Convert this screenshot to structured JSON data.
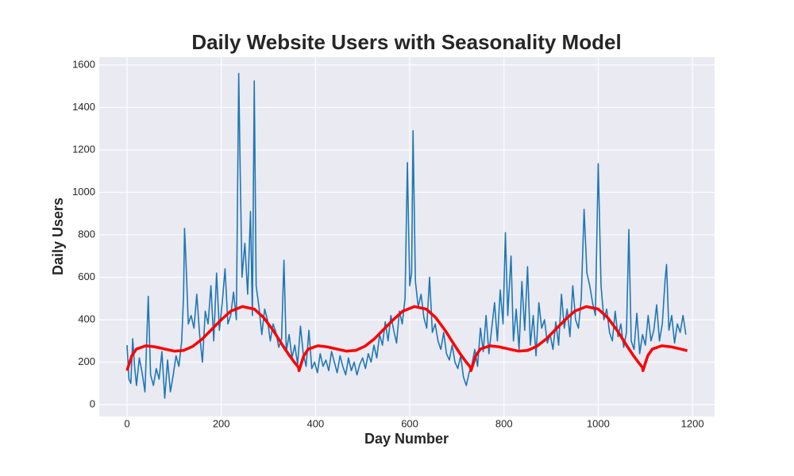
{
  "chart_data": {
    "type": "line",
    "title": "Daily Website Users with Seasonality Model",
    "x_label": "Day Number",
    "y_label": "Daily Users",
    "xlim": [
      -59,
      1247
    ],
    "ylim": [
      -56,
      1637
    ],
    "xticks": [
      0,
      200,
      400,
      600,
      800,
      1000,
      1200
    ],
    "yticks": [
      0,
      200,
      400,
      600,
      800,
      1000,
      1200,
      1400,
      1600
    ],
    "grid": true,
    "series": [
      {
        "color": "#1f77b4",
        "width": 1.6,
        "x": [
          0,
          4,
          8,
          12,
          16,
          20,
          26,
          32,
          38,
          45,
          50,
          56,
          62,
          68,
          74,
          80,
          86,
          92,
          98,
          104,
          110,
          116,
          120,
          122,
          125,
          130,
          136,
          142,
          148,
          154,
          160,
          166,
          172,
          178,
          184,
          190,
          196,
          202,
          208,
          214,
          220,
          226,
          232,
          237,
          240,
          244,
          250,
          256,
          262,
          266,
          270,
          274,
          280,
          286,
          292,
          298,
          304,
          310,
          316,
          322,
          328,
          333,
          338,
          344,
          350,
          356,
          362,
          368,
          374,
          380,
          386,
          392,
          398,
          404,
          410,
          416,
          422,
          428,
          434,
          440,
          446,
          452,
          458,
          464,
          470,
          476,
          482,
          488,
          494,
          500,
          506,
          512,
          518,
          524,
          530,
          536,
          542,
          548,
          554,
          560,
          566,
          572,
          578,
          584,
          590,
          595,
          600,
          604,
          607,
          612,
          618,
          624,
          630,
          636,
          642,
          648,
          654,
          660,
          666,
          672,
          678,
          684,
          690,
          696,
          702,
          708,
          714,
          720,
          726,
          732,
          738,
          744,
          750,
          756,
          762,
          768,
          774,
          780,
          786,
          792,
          798,
          803,
          808,
          815,
          820,
          826,
          832,
          838,
          844,
          850,
          856,
          862,
          868,
          874,
          880,
          886,
          892,
          898,
          904,
          910,
          916,
          922,
          928,
          934,
          940,
          946,
          952,
          958,
          964,
          970,
          976,
          982,
          988,
          994,
          1000,
          1006,
          1012,
          1018,
          1024,
          1030,
          1036,
          1042,
          1048,
          1054,
          1060,
          1065,
          1070,
          1076,
          1082,
          1088,
          1094,
          1100,
          1106,
          1112,
          1118,
          1124,
          1130,
          1136,
          1142,
          1145,
          1150,
          1156,
          1162,
          1168,
          1174,
          1180,
          1186
        ],
        "values": [
          280,
          120,
          100,
          310,
          180,
          90,
          220,
          150,
          60,
          510,
          140,
          90,
          170,
          120,
          250,
          30,
          210,
          60,
          140,
          230,
          180,
          300,
          520,
          830,
          680,
          380,
          420,
          360,
          520,
          330,
          200,
          440,
          380,
          560,
          300,
          620,
          350,
          480,
          640,
          380,
          420,
          530,
          400,
          1560,
          1120,
          600,
          760,
          520,
          910,
          420,
          1525,
          560,
          460,
          330,
          450,
          400,
          300,
          380,
          340,
          270,
          310,
          680,
          250,
          330,
          220,
          280,
          190,
          370,
          240,
          180,
          350,
          170,
          200,
          150,
          240,
          180,
          210,
          160,
          250,
          200,
          150,
          230,
          180,
          140,
          220,
          160,
          200,
          140,
          190,
          220,
          170,
          240,
          200,
          280,
          220,
          330,
          280,
          390,
          300,
          420,
          350,
          290,
          440,
          380,
          500,
          1140,
          560,
          620,
          1290,
          580,
          460,
          520,
          410,
          360,
          600,
          340,
          380,
          300,
          260,
          340,
          240,
          210,
          280,
          200,
          170,
          230,
          130,
          90,
          150,
          190,
          260,
          180,
          360,
          250,
          420,
          240,
          360,
          480,
          300,
          540,
          380,
          810,
          420,
          700,
          300,
          450,
          260,
          580,
          350,
          650,
          280,
          420,
          230,
          480,
          360,
          400,
          290,
          330,
          260,
          390,
          280,
          520,
          360,
          450,
          320,
          560,
          400,
          360,
          500,
          920,
          620,
          560,
          480,
          420,
          1135,
          560,
          400,
          450,
          340,
          300,
          440,
          320,
          380,
          270,
          340,
          825,
          300,
          260,
          430,
          240,
          330,
          280,
          420,
          300,
          350,
          470,
          300,
          380,
          590,
          660,
          350,
          420,
          290,
          380,
          340,
          420,
          330
        ]
      },
      {
        "color": "red",
        "width": 3.5,
        "x": [
          0,
          10,
          20,
          40,
          60,
          80,
          100,
          120,
          140,
          160,
          180,
          200,
          220,
          245,
          270,
          290,
          310,
          330,
          345,
          355,
          364,
          365,
          375,
          385,
          405,
          425,
          445,
          465,
          485,
          505,
          525,
          545,
          565,
          585,
          610,
          635,
          655,
          675,
          695,
          710,
          720,
          729,
          730,
          740,
          750,
          770,
          790,
          810,
          830,
          850,
          870,
          890,
          910,
          930,
          950,
          975,
          1000,
          1020,
          1040,
          1060,
          1075,
          1085,
          1094,
          1095,
          1105,
          1115,
          1135,
          1155,
          1175,
          1189
        ],
        "values": [
          160,
          230,
          262,
          277,
          272,
          262,
          252,
          255,
          275,
          310,
          355,
          400,
          440,
          462,
          450,
          410,
          350,
          280,
          230,
          200,
          175,
          160,
          230,
          262,
          277,
          272,
          262,
          252,
          255,
          275,
          310,
          355,
          400,
          440,
          462,
          450,
          410,
          350,
          280,
          230,
          200,
          175,
          160,
          230,
          262,
          277,
          272,
          262,
          252,
          255,
          275,
          310,
          355,
          400,
          440,
          462,
          450,
          410,
          350,
          280,
          230,
          200,
          175,
          160,
          230,
          262,
          277,
          272,
          262,
          254
        ]
      }
    ]
  }
}
